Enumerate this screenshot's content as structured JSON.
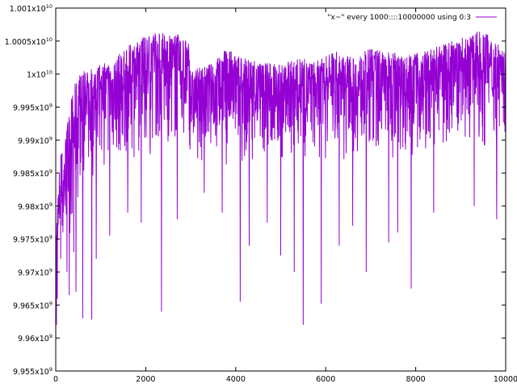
{
  "chart_data": {
    "type": "line",
    "title": "",
    "xlabel": "",
    "ylabel": "",
    "xlim": [
      0,
      10000
    ],
    "ylim": [
      9955000000,
      10010000000
    ],
    "grid": false,
    "legend_position": "top-right",
    "x_ticks": [
      {
        "value": 0,
        "label": "0"
      },
      {
        "value": 2000,
        "label": "2000"
      },
      {
        "value": 4000,
        "label": "4000"
      },
      {
        "value": 6000,
        "label": "6000"
      },
      {
        "value": 8000,
        "label": "8000"
      },
      {
        "value": 10000,
        "label": "10000"
      }
    ],
    "y_ticks": [
      {
        "value": 9955000000,
        "base": "9.955x10",
        "exp": "9"
      },
      {
        "value": 9960000000,
        "base": "9.96x10",
        "exp": "9"
      },
      {
        "value": 9965000000,
        "base": "9.965x10",
        "exp": "9"
      },
      {
        "value": 9970000000,
        "base": "9.97x10",
        "exp": "9"
      },
      {
        "value": 9975000000,
        "base": "9.975x10",
        "exp": "9"
      },
      {
        "value": 9980000000,
        "base": "9.98x10",
        "exp": "9"
      },
      {
        "value": 9985000000,
        "base": "9.985x10",
        "exp": "9"
      },
      {
        "value": 9990000000,
        "base": "9.99x10",
        "exp": "9"
      },
      {
        "value": 9995000000,
        "base": "9.995x10",
        "exp": "9"
      },
      {
        "value": 10000000000,
        "base": "1x10",
        "exp": "10"
      },
      {
        "value": 10005000000,
        "base": "1.0005x10",
        "exp": "10"
      },
      {
        "value": 10010000000,
        "base": "1.001x10",
        "exp": "10"
      }
    ],
    "series": [
      {
        "name": "\"x~\" every 1000::::10000000 using 0:3",
        "color": "#9400d3",
        "envelope": [
          {
            "x": 0,
            "hi": 9977000000,
            "lo": 9960000000
          },
          {
            "x": 100,
            "hi": 9988000000,
            "lo": 9968000000
          },
          {
            "x": 200,
            "hi": 9990000000,
            "lo": 9970000000
          },
          {
            "x": 300,
            "hi": 9995000000,
            "lo": 9972000000
          },
          {
            "x": 400,
            "hi": 9998000000,
            "lo": 9976000000
          },
          {
            "x": 500,
            "hi": 10000000000,
            "lo": 9978000000
          },
          {
            "x": 800,
            "hi": 10001000000,
            "lo": 9982000000
          },
          {
            "x": 1000,
            "hi": 10001500000,
            "lo": 9984000000
          },
          {
            "x": 1200,
            "hi": 10002500000,
            "lo": 9985000000
          },
          {
            "x": 1500,
            "hi": 10003500000,
            "lo": 9986000000
          },
          {
            "x": 1800,
            "hi": 10005500000,
            "lo": 9987000000
          },
          {
            "x": 2000,
            "hi": 10006000000,
            "lo": 9987000000
          },
          {
            "x": 2400,
            "hi": 10006500000,
            "lo": 9987000000
          },
          {
            "x": 2800,
            "hi": 10006000000,
            "lo": 9987000000
          },
          {
            "x": 2950,
            "hi": 10005500000,
            "lo": 9987000000
          },
          {
            "x": 3000,
            "hi": 10000500000,
            "lo": 9987000000
          },
          {
            "x": 3400,
            "hi": 10001500000,
            "lo": 9986000000
          },
          {
            "x": 3800,
            "hi": 10004000000,
            "lo": 9986000000
          },
          {
            "x": 4200,
            "hi": 10002500000,
            "lo": 9986000000
          },
          {
            "x": 4600,
            "hi": 10002000000,
            "lo": 9986000000
          },
          {
            "x": 5000,
            "hi": 10001500000,
            "lo": 9985000000
          },
          {
            "x": 5400,
            "hi": 10002500000,
            "lo": 9986000000
          },
          {
            "x": 5800,
            "hi": 10002000000,
            "lo": 9986000000
          },
          {
            "x": 6200,
            "hi": 10003500000,
            "lo": 9987000000
          },
          {
            "x": 6600,
            "hi": 10002500000,
            "lo": 9987000000
          },
          {
            "x": 7000,
            "hi": 10004000000,
            "lo": 9987000000
          },
          {
            "x": 7400,
            "hi": 10003500000,
            "lo": 9987000000
          },
          {
            "x": 7800,
            "hi": 10003000000,
            "lo": 9987000000
          },
          {
            "x": 8200,
            "hi": 10003500000,
            "lo": 9987000000
          },
          {
            "x": 8600,
            "hi": 10004500000,
            "lo": 9987000000
          },
          {
            "x": 9000,
            "hi": 10006000000,
            "lo": 9988000000
          },
          {
            "x": 9400,
            "hi": 10006500000,
            "lo": 9988000000
          },
          {
            "x": 9800,
            "hi": 10005500000,
            "lo": 9988000000
          },
          {
            "x": 10000,
            "hi": 10003000000,
            "lo": 9990000000
          }
        ],
        "dips": [
          {
            "x": 15,
            "y": 9962000000
          },
          {
            "x": 35,
            "y": 9966000000
          },
          {
            "x": 110,
            "y": 9972000000
          },
          {
            "x": 160,
            "y": 9976000000
          },
          {
            "x": 250,
            "y": 9970000000
          },
          {
            "x": 300,
            "y": 9966500000
          },
          {
            "x": 400,
            "y": 9973000000
          },
          {
            "x": 450,
            "y": 9967000000
          },
          {
            "x": 600,
            "y": 9963000000
          },
          {
            "x": 800,
            "y": 9962800000
          },
          {
            "x": 900,
            "y": 9972000000
          },
          {
            "x": 1200,
            "y": 9975500000
          },
          {
            "x": 1600,
            "y": 9979000000
          },
          {
            "x": 1900,
            "y": 9977500000
          },
          {
            "x": 2350,
            "y": 9964000000
          },
          {
            "x": 2700,
            "y": 9978000000
          },
          {
            "x": 3300,
            "y": 9982000000
          },
          {
            "x": 3700,
            "y": 9979000000
          },
          {
            "x": 4100,
            "y": 9965500000
          },
          {
            "x": 4300,
            "y": 9974000000
          },
          {
            "x": 4700,
            "y": 9977500000
          },
          {
            "x": 5000,
            "y": 9972500000
          },
          {
            "x": 5300,
            "y": 9970000000
          },
          {
            "x": 5500,
            "y": 9962000000
          },
          {
            "x": 5900,
            "y": 9965200000
          },
          {
            "x": 6300,
            "y": 9974000000
          },
          {
            "x": 6600,
            "y": 9977000000
          },
          {
            "x": 6900,
            "y": 9970000000
          },
          {
            "x": 7400,
            "y": 9974500000
          },
          {
            "x": 7600,
            "y": 9976000000
          },
          {
            "x": 7900,
            "y": 9967500000
          },
          {
            "x": 8400,
            "y": 9979000000
          },
          {
            "x": 9300,
            "y": 9980000000
          },
          {
            "x": 9800,
            "y": 9978000000
          }
        ]
      }
    ]
  }
}
